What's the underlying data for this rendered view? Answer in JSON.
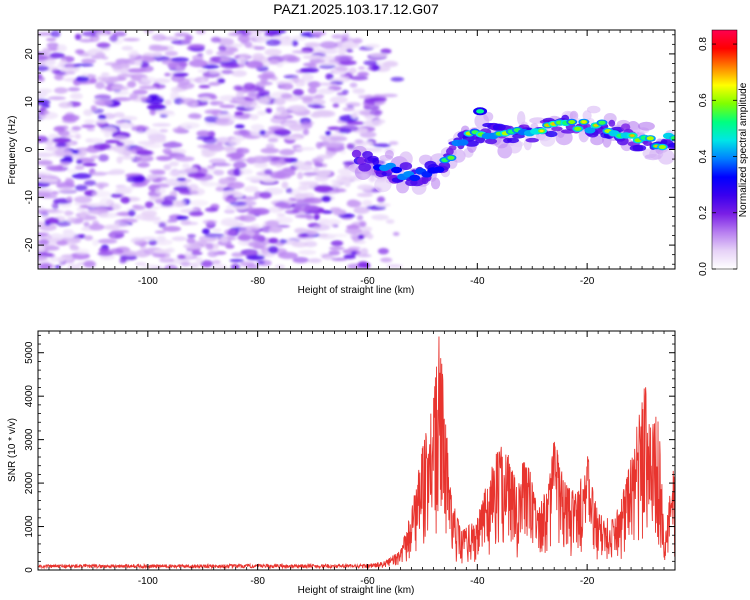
{
  "title": "PAZ1.2025.103.17.12.G07",
  "chart_data": [
    {
      "type": "heatmap",
      "xlabel": "Height of straight line (km)",
      "ylabel": "Frequency (Hz)",
      "xlim": [
        -120,
        -4
      ],
      "ylim": [
        -25,
        25
      ],
      "x_ticks": [
        -100,
        -80,
        -60,
        -40,
        -20
      ],
      "y_ticks": [
        -20,
        -10,
        0,
        10,
        20
      ],
      "colorbar": {
        "label": "Normalized spectral amplitude",
        "range": [
          0,
          0.85
        ],
        "ticks": [
          0,
          0.2,
          0.4,
          0.6,
          0.8
        ],
        "colors": [
          "#ffffff",
          "#e6d2f7",
          "#b77ef0",
          "#7a1fe6",
          "#3a00ee",
          "#0000ff",
          "#0080ff",
          "#00e6e6",
          "#00ff80",
          "#80ff00",
          "#ffff00",
          "#ff8000",
          "#ff0000",
          "#ff0050"
        ]
      },
      "features": [
        {
          "name": "noise",
          "x_range": [
            -120,
            -57
          ],
          "y_range": [
            -25,
            25
          ],
          "level": 0.12
        },
        {
          "name": "signal",
          "points": [
            [
              -62,
              -1.5
            ],
            [
              -57,
              -4
            ],
            [
              -52,
              -5.5
            ],
            [
              -48,
              -4.5
            ],
            [
              -45,
              -1
            ],
            [
              -42,
              2.5
            ],
            [
              -38,
              3.5
            ],
            [
              -34,
              3
            ],
            [
              -30,
              3.5
            ],
            [
              -26,
              5
            ],
            [
              -22,
              5
            ],
            [
              -18,
              5
            ],
            [
              -14,
              3.5
            ],
            [
              -10,
              1.5
            ],
            [
              -6,
              1.5
            ],
            [
              -4,
              2.5
            ]
          ],
          "level": 0.45
        }
      ]
    },
    {
      "type": "line",
      "xlabel": "Height of straight line (km)",
      "ylabel": "SNR (10 * v/v)",
      "xlim": [
        -120,
        -4
      ],
      "ylim": [
        0,
        5500
      ],
      "x_ticks": [
        -100,
        -80,
        -60,
        -40,
        -20
      ],
      "y_ticks": [
        0,
        1000,
        2000,
        3000,
        4000,
        5000
      ],
      "color": "#e8342e",
      "envelope": [
        [
          -120,
          120
        ],
        [
          -60,
          130
        ],
        [
          -57,
          200
        ],
        [
          -54,
          450
        ],
        [
          -52,
          1400
        ],
        [
          -50,
          2800
        ],
        [
          -48,
          4000
        ],
        [
          -47,
          5400
        ],
        [
          -46,
          4200
        ],
        [
          -45,
          2000
        ],
        [
          -43,
          900
        ],
        [
          -40,
          1200
        ],
        [
          -37,
          2600
        ],
        [
          -35,
          3000
        ],
        [
          -33,
          2100
        ],
        [
          -31,
          2700
        ],
        [
          -29,
          1400
        ],
        [
          -27,
          2000
        ],
        [
          -26,
          3100
        ],
        [
          -24,
          2000
        ],
        [
          -22,
          1800
        ],
        [
          -20,
          2700
        ],
        [
          -18,
          1300
        ],
        [
          -15,
          1200
        ],
        [
          -13,
          2000
        ],
        [
          -11,
          3300
        ],
        [
          -9.5,
          4400
        ],
        [
          -8,
          3500
        ],
        [
          -7,
          3600
        ],
        [
          -6.5,
          2400
        ],
        [
          -6,
          700
        ],
        [
          -5,
          1700
        ],
        [
          -4,
          2600
        ]
      ]
    }
  ]
}
